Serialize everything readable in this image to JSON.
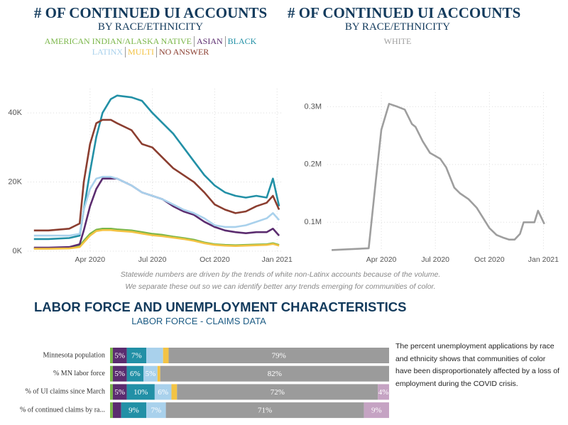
{
  "chart_data": [
    {
      "type": "line",
      "title": "# OF CONTINUED UI ACCOUNTS",
      "subtitle": "BY RACE/ETHNICITY",
      "x": [
        0.3,
        1,
        2,
        2.5,
        2.7,
        3,
        3.3,
        3.6,
        4,
        4.3,
        5,
        5.5,
        6,
        6.5,
        7,
        7.5,
        8,
        8.5,
        9,
        9.5,
        10,
        10.5,
        11,
        11.5,
        11.8,
        12.1
      ],
      "series": [
        {
          "name": "AMERICAN INDIAN/ALASKA NATIVE",
          "color": "#7ab648",
          "values": [
            800,
            800,
            900,
            1500,
            3000,
            5000,
            6200,
            6500,
            6500,
            6300,
            6000,
            5500,
            5000,
            4700,
            4200,
            3800,
            3300,
            2500,
            2000,
            1800,
            1700,
            1800,
            1900,
            2000,
            2300,
            1800
          ]
        },
        {
          "name": "ASIAN",
          "color": "#5b2c6f",
          "values": [
            1000,
            1000,
            1200,
            2000,
            6000,
            13000,
            18000,
            21000,
            21000,
            21000,
            19000,
            17000,
            16000,
            15000,
            13000,
            11500,
            10500,
            8500,
            7000,
            6000,
            5500,
            5200,
            5500,
            5500,
            6500,
            4500
          ]
        },
        {
          "name": "BLACK",
          "color": "#2290a6",
          "values": [
            3500,
            3500,
            3800,
            4500,
            12000,
            23000,
            33000,
            40000,
            44000,
            45000,
            44500,
            43500,
            40000,
            37000,
            34000,
            30000,
            26000,
            22000,
            19000,
            17000,
            16000,
            15500,
            16000,
            15500,
            21000,
            13000
          ]
        },
        {
          "name": "LATINX",
          "color": "#a9d1ec",
          "values": [
            4500,
            4500,
            4500,
            5000,
            12000,
            18000,
            21000,
            21500,
            21500,
            21000,
            19000,
            17000,
            16000,
            15000,
            13500,
            12000,
            11000,
            9500,
            7500,
            7000,
            7000,
            7500,
            8500,
            9500,
            11000,
            9000
          ]
        },
        {
          "name": "MULTI",
          "color": "#f3c344",
          "values": [
            700,
            700,
            800,
            1200,
            2500,
            4500,
            5800,
            6100,
            6100,
            5900,
            5600,
            5100,
            4600,
            4300,
            3900,
            3500,
            3000,
            2300,
            1800,
            1600,
            1500,
            1600,
            1700,
            1800,
            2100,
            1600
          ]
        },
        {
          "name": "NO ANSWER",
          "color": "#8b3e30",
          "values": [
            6000,
            6000,
            6500,
            8000,
            20000,
            31000,
            37000,
            38000,
            38000,
            37000,
            35000,
            31000,
            30000,
            27000,
            24000,
            22000,
            20000,
            17000,
            13500,
            12000,
            11000,
            11500,
            13000,
            14000,
            16000,
            12000
          ]
        }
      ],
      "xlim": [
        0,
        12.3
      ],
      "xticks": [
        {
          "value": 3,
          "label": "Apr 2020"
        },
        {
          "value": 6,
          "label": "Jul 2020"
        },
        {
          "value": 9,
          "label": "Oct 2020"
        },
        {
          "value": 12,
          "label": "Jan 2021"
        }
      ],
      "ylim": [
        0,
        47000
      ],
      "yticks": [
        {
          "value": 0,
          "label": "0K"
        },
        {
          "value": 20000,
          "label": "20K"
        },
        {
          "value": 40000,
          "label": "40K"
        }
      ],
      "grid": true
    },
    {
      "type": "line",
      "title": "# OF CONTINUED UI ACCOUNTS",
      "subtitle": "BY RACE/ETHNICITY",
      "x": [
        0.24,
        2.3,
        2.72,
        3,
        3.43,
        3.9,
        4.3,
        4.7,
        4.9,
        5.3,
        5.7,
        6.27,
        6.6,
        7.05,
        7.37,
        7.84,
        8.3,
        8.6,
        9.0,
        9.4,
        9.8,
        10.1,
        10.4,
        10.7,
        10.9,
        11.2,
        11.5,
        11.7,
        12.05
      ],
      "series": [
        {
          "name": "WHITE",
          "color": "#9e9e9e",
          "values": [
            52000,
            55000,
            180000,
            260000,
            305000,
            300000,
            295000,
            270000,
            265000,
            240000,
            220000,
            210000,
            195000,
            160000,
            150000,
            140000,
            125000,
            110000,
            90000,
            78000,
            73000,
            70000,
            70000,
            80000,
            100000,
            100000,
            100000,
            120000,
            97000
          ]
        }
      ],
      "xlim": [
        0,
        12.3
      ],
      "xticks": [
        {
          "value": 3,
          "label": "Apr 2020"
        },
        {
          "value": 6,
          "label": "Jul 2020"
        },
        {
          "value": 9,
          "label": "Oct 2020"
        },
        {
          "value": 12,
          "label": "Jan 2021"
        }
      ],
      "ylim": [
        50000,
        325000
      ],
      "yticks": [
        {
          "value": 100000,
          "label": "0.1M"
        },
        {
          "value": 200000,
          "label": "0.2M"
        },
        {
          "value": 300000,
          "label": "0.3M"
        }
      ],
      "grid": true
    },
    {
      "type": "stacked-bar-horizontal",
      "title": "LABOR FORCE AND UNEMPLOYMENT CHARACTERISTICS",
      "subtitle": "LABOR FORCE - CLAIMS DATA",
      "categories": [
        "Minnesota population",
        "% MN labor force",
        "% of UI claims since March",
        "% of continued claims by ra..."
      ],
      "series": [
        {
          "color": "#7ab648",
          "values": [
            1,
            1,
            1,
            1
          ],
          "value_labels": [
            null,
            null,
            null,
            null
          ]
        },
        {
          "color": "#5b2c6f",
          "values": [
            5,
            5,
            5,
            3
          ],
          "value_labels": [
            "5%",
            "5%",
            "5%",
            null
          ]
        },
        {
          "color": "#2290a6",
          "values": [
            7,
            6,
            10,
            9
          ],
          "value_labels": [
            "7%",
            "6%",
            "10%",
            "9%"
          ]
        },
        {
          "color": "#a9d1ec",
          "values": [
            6,
            5,
            6,
            7
          ],
          "value_labels": [
            null,
            "5%",
            "6%",
            "7%"
          ]
        },
        {
          "color": "#f3c344",
          "values": [
            2,
            1,
            2,
            0
          ],
          "value_labels": [
            null,
            null,
            null,
            null
          ]
        },
        {
          "color": "#9b9b9b",
          "values": [
            79,
            82,
            72,
            71
          ],
          "value_labels": [
            "79%",
            "82%",
            "72%",
            "71%"
          ]
        },
        {
          "color": "#c5a3c3",
          "values": [
            0,
            0,
            4,
            9
          ],
          "value_labels": [
            null,
            null,
            "4%",
            "9%"
          ]
        }
      ],
      "xlim": [
        0,
        100
      ]
    }
  ],
  "note": [
    "Statewide numbers are driven by the trends of white non-Latinx accounts because of the volume.",
    "We separate these out so we can identify better any trends emerging for communities of color."
  ],
  "description": "The percent unemployment applications by race and ethnicity shows that communities of color have been disproportionately affected by a loss of employment during the COVID crisis."
}
